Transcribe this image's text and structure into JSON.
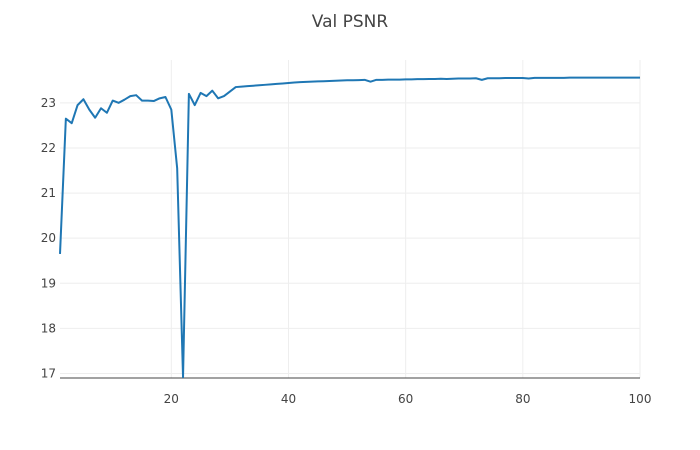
{
  "chart_data": {
    "type": "line",
    "title": "Val PSNR",
    "xlabel": "",
    "ylabel": "",
    "xlim": [
      1,
      100
    ],
    "ylim": [
      16.9,
      23.95
    ],
    "xticks": [
      20,
      40,
      60,
      80,
      100
    ],
    "yticks": [
      17,
      18,
      19,
      20,
      21,
      22,
      23
    ],
    "grid": true,
    "colors": {
      "line": "#1f77b4",
      "grid": "#eeeeee",
      "zeroline": "#444444"
    },
    "series": [
      {
        "x": [
          1,
          2,
          3,
          4,
          5,
          6,
          7,
          8,
          9,
          10,
          11,
          12,
          13,
          14,
          15,
          16,
          17,
          18,
          19,
          20,
          21,
          22,
          23,
          24,
          25,
          26,
          27,
          28,
          29,
          30,
          31,
          32,
          33,
          34,
          35,
          36,
          37,
          38,
          39,
          40,
          41,
          42,
          43,
          44,
          45,
          46,
          47,
          48,
          49,
          50,
          51,
          52,
          53,
          54,
          55,
          56,
          57,
          58,
          59,
          60,
          61,
          62,
          63,
          64,
          65,
          66,
          67,
          68,
          69,
          70,
          71,
          72,
          73,
          74,
          75,
          76,
          77,
          78,
          79,
          80,
          81,
          82,
          83,
          84,
          85,
          86,
          87,
          88,
          89,
          90,
          91,
          92,
          93,
          94,
          95,
          96,
          97,
          98,
          99,
          100
        ],
        "y": [
          19.65,
          22.65,
          22.55,
          22.95,
          23.08,
          22.85,
          22.67,
          22.88,
          22.78,
          23.05,
          23.0,
          23.07,
          23.15,
          23.17,
          23.05,
          23.05,
          23.04,
          23.1,
          23.13,
          22.85,
          21.55,
          16.92,
          23.2,
          22.95,
          23.22,
          23.15,
          23.27,
          23.1,
          23.15,
          23.25,
          23.35,
          23.36,
          23.37,
          23.38,
          23.39,
          23.4,
          23.41,
          23.42,
          23.43,
          23.44,
          23.45,
          23.46,
          23.465,
          23.47,
          23.475,
          23.48,
          23.485,
          23.49,
          23.495,
          23.5,
          23.5,
          23.505,
          23.51,
          23.47,
          23.51,
          23.51,
          23.515,
          23.515,
          23.515,
          23.52,
          23.52,
          23.525,
          23.525,
          23.53,
          23.53,
          23.535,
          23.53,
          23.535,
          23.54,
          23.54,
          23.54,
          23.545,
          23.51,
          23.545,
          23.545,
          23.545,
          23.55,
          23.55,
          23.55,
          23.55,
          23.54,
          23.555,
          23.555,
          23.555,
          23.555,
          23.555,
          23.555,
          23.56,
          23.56,
          23.56,
          23.56,
          23.56,
          23.56,
          23.56,
          23.56,
          23.56,
          23.56,
          23.56,
          23.56,
          23.56
        ]
      }
    ]
  }
}
